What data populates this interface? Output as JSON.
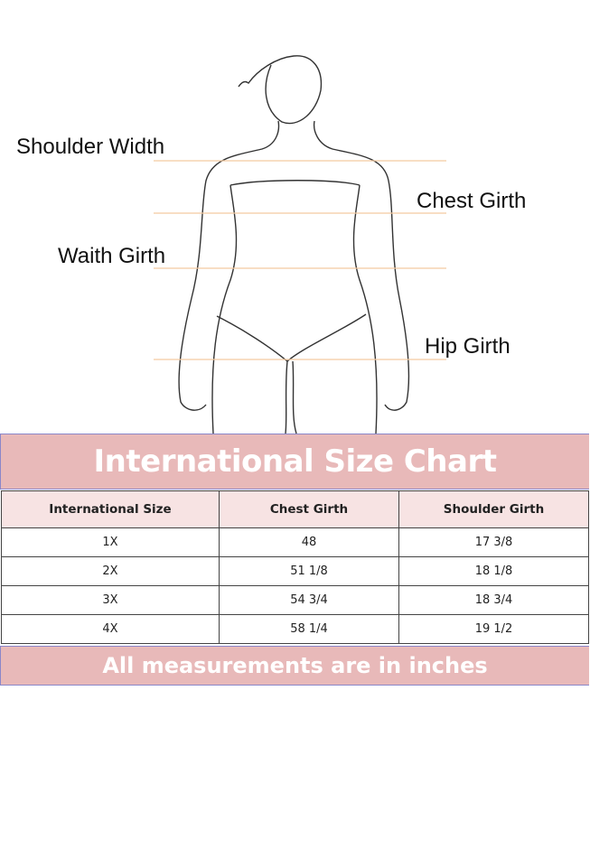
{
  "figure": {
    "labels": {
      "shoulder_width": "Shoulder Width",
      "chest_girth": "Chest Girth",
      "waist_girth": "Waith Girth",
      "hip_girth": "Hip Girth"
    },
    "guide_line_color": "#f3c9a1"
  },
  "size_chart": {
    "title": "International Size Chart",
    "columns": [
      "International Size",
      "Chest Girth",
      "Shoulder Girth"
    ],
    "rows": [
      [
        "1X",
        "48",
        "17 3/8"
      ],
      [
        "2X",
        "51 1/8",
        "18 1/8"
      ],
      [
        "3X",
        "54 3/4",
        "18 3/4"
      ],
      [
        "4X",
        "58 1/4",
        "19 1/2"
      ]
    ],
    "footer": "All measurements are in inches",
    "band_color": "#e8b9b9",
    "header_color": "#f7e3e3"
  }
}
